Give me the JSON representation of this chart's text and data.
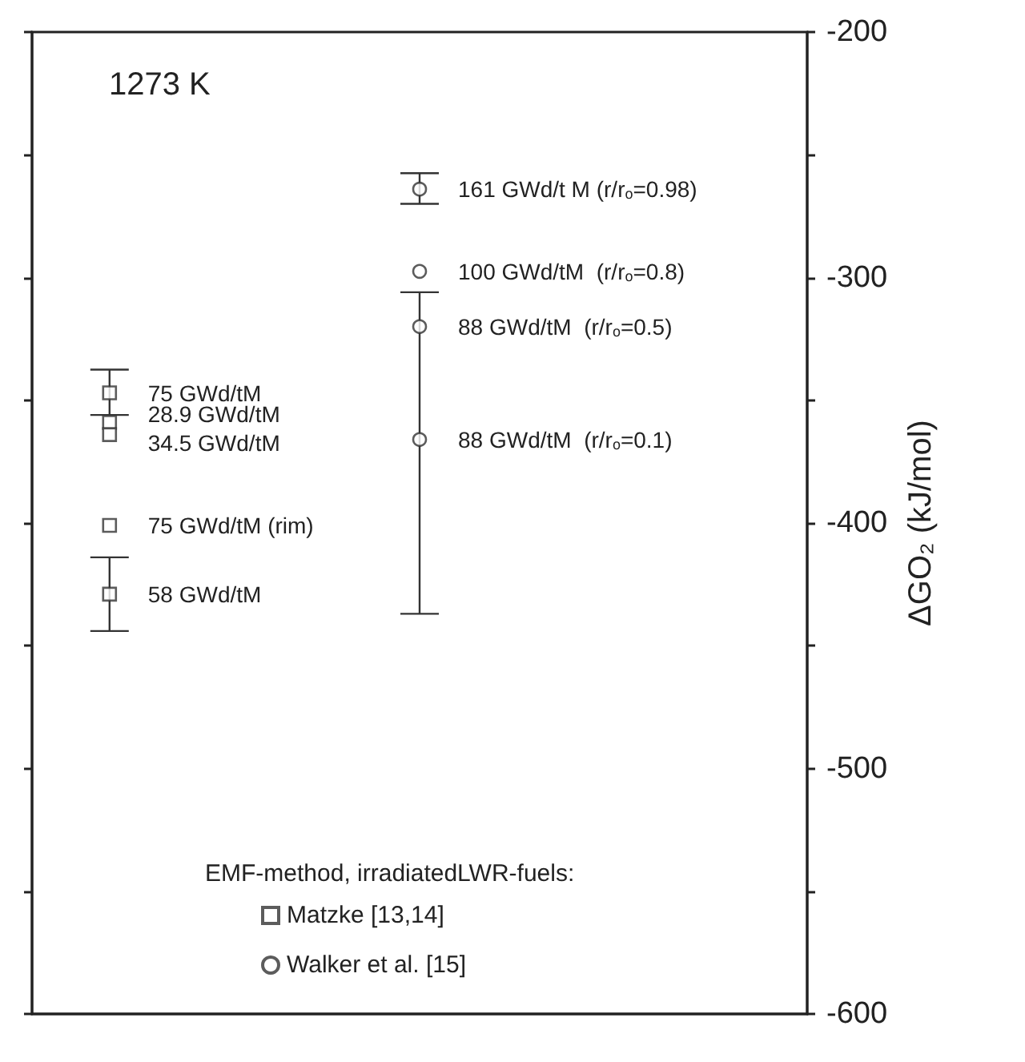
{
  "chart_data": {
    "type": "scatter",
    "ylabel": "ΔGO₂ (kJ/mol)",
    "legend_title": "EMF-method, irradiatedLWR-fuels:",
    "categories": [
      null,
      null,
      null,
      null,
      null
    ],
    "ylim": [
      -600,
      -200
    ],
    "yticks": [
      -200,
      {
        "value": -250,
        "label": null
      },
      -300,
      {
        "value": -350,
        "label": null
      },
      -400,
      {
        "value": -450,
        "label": null
      },
      -500,
      {
        "value": -550,
        "label": null
      },
      -600
    ],
    "tick_labels": "y",
    "legend": "bottom left",
    "series": [
      {
        "name": "Matzke [13,14]",
        "color": "#333333",
        "marker": "square",
        "values": [
          -347,
          null,
          null,
          null,
          null
        ],
        "errors": [
          [
            -356,
            -337.5
          ],
          null,
          null,
          null,
          null
        ]
      },
      {
        "color": "#333333",
        "marker": "square",
        "values": [
          -359,
          null,
          null,
          null,
          null
        ]
      },
      {
        "color": "#333333",
        "marker": "square",
        "values": [
          -364,
          null,
          null,
          null,
          null
        ]
      },
      {
        "color": "#333333",
        "marker": "square",
        "values": [
          -401,
          null,
          null,
          null,
          null
        ]
      },
      {
        "color": "#333333",
        "marker": "square",
        "values": [
          -429,
          null,
          null,
          null,
          null
        ],
        "errors": [
          [
            -444,
            -414
          ],
          null,
          null,
          null,
          null
        ]
      },
      {
        "name": "Walker et al. [15]",
        "color": "#333333",
        "marker": "circle",
        "values": [
          null,
          null,
          -264,
          null,
          null
        ],
        "errors": [
          null,
          null,
          [
            -270,
            -257.5
          ],
          null,
          null
        ]
      },
      {
        "color": "#333333",
        "marker": "circle",
        "values": [
          null,
          null,
          -297.5,
          null,
          null
        ]
      },
      {
        "color": "#333333",
        "marker": "circle",
        "values": [
          null,
          null,
          -320,
          null,
          null
        ]
      },
      {
        "color": "#333333",
        "marker": "circle",
        "values": [
          null,
          null,
          -366,
          null,
          null
        ],
        "errors": [
          null,
          null,
          [
            -437,
            -306
          ],
          null,
          null
        ]
      }
    ],
    "title": "1273 K",
    "annotations": [
      "75 GWd/tM",
      "28.9 GWd/tM",
      "34.5 GWd/tM",
      "75 GWd/tM (rim)",
      "58 GWd/tM",
      "161 GWd/t M (r/r$_{o}$=0.98)",
      "100 GWd/tM  (r/r$_{o}$=0.8)",
      "88 GWd/tM  (r/r$_{o}$=0.5)",
      "88 GWd/tM  (r/r$_{o}$=0.1)"
    ]
  }
}
